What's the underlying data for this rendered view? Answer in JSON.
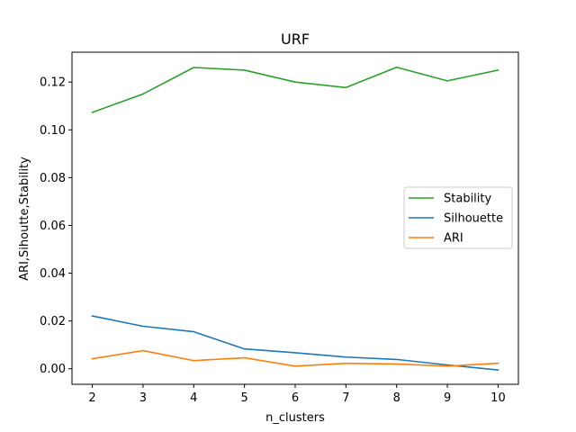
{
  "chart_data": {
    "type": "line",
    "title": "URF",
    "xlabel": "n_clusters",
    "ylabel": "ARI,Sihoutte,Stability",
    "x": [
      2,
      3,
      4,
      5,
      6,
      7,
      8,
      9,
      10
    ],
    "xlim": [
      1.6,
      10.4
    ],
    "ylim": [
      -0.0065,
      0.1325
    ],
    "xticks": [
      "2",
      "3",
      "4",
      "5",
      "6",
      "7",
      "8",
      "9",
      "10"
    ],
    "yticks": [
      {
        "value": 0.0,
        "label": "0.00"
      },
      {
        "value": 0.02,
        "label": "0.02"
      },
      {
        "value": 0.04,
        "label": "0.04"
      },
      {
        "value": 0.06,
        "label": "0.06"
      },
      {
        "value": 0.08,
        "label": "0.08"
      },
      {
        "value": 0.1,
        "label": "0.10"
      },
      {
        "value": 0.12,
        "label": "0.12"
      }
    ],
    "legend_position": "center-right",
    "series": [
      {
        "name": "Stability",
        "color": "#2ca02c",
        "values": [
          0.1073,
          0.115,
          0.1261,
          0.125,
          0.12,
          0.1177,
          0.1262,
          0.1205,
          0.125
        ]
      },
      {
        "name": "Silhouette",
        "color": "#1f77b4",
        "values": [
          0.0221,
          0.0178,
          0.0155,
          0.0083,
          0.0067,
          0.0049,
          0.0039,
          0.0016,
          -0.0005
        ]
      },
      {
        "name": "ARI",
        "color": "#ff7f0e",
        "values": [
          0.0042,
          0.0076,
          0.0034,
          0.0046,
          0.0011,
          0.0023,
          0.002,
          0.0011,
          0.0023
        ]
      }
    ]
  }
}
